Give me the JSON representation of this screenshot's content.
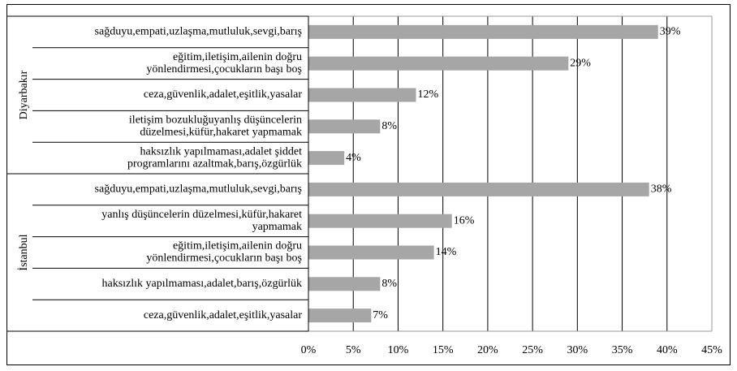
{
  "chart_data": {
    "type": "bar",
    "orientation": "horizontal",
    "color": "#a6a6a6",
    "xlim": [
      0,
      45
    ],
    "xticks": [
      {
        "value": 0,
        "label": "0%"
      },
      {
        "value": 5,
        "label": "5%"
      },
      {
        "value": 10,
        "label": "10%"
      },
      {
        "value": 15,
        "label": "15%"
      },
      {
        "value": 20,
        "label": "20%"
      },
      {
        "value": 25,
        "label": "25%"
      },
      {
        "value": 30,
        "label": "30%"
      },
      {
        "value": 35,
        "label": "35%"
      },
      {
        "value": 40,
        "label": "40%"
      },
      {
        "value": 45,
        "label": "45%"
      }
    ],
    "grid": true,
    "groups": [
      {
        "name": "Diyarbakır",
        "categories": [
          [
            "sağduyu,empati,uzlaşma,mutluluk,sevgi,barış"
          ],
          [
            "eğitim,iletişim,ailenin doğru",
            "yönlendirmesi,çocukların başı boş"
          ],
          [
            "ceza,güvenlik,adalet,eşitlik,yasalar"
          ],
          [
            "iletişim bozukluğuyanlış düşüncelerin",
            "düzelmesi,küfür,hakaret yapmamak"
          ],
          [
            "haksızlık yapılmaması,adalet şiddet",
            "programlarını azaltmak,barış,özgürlük"
          ]
        ],
        "values": [
          39,
          29,
          12,
          8,
          4
        ],
        "value_labels": [
          "39%",
          "29%",
          "12%",
          "8%",
          "4%"
        ]
      },
      {
        "name": "İstanbul",
        "categories": [
          [
            "sağduyu,empati,uzlaşma,mutluluk,sevgi,barış"
          ],
          [
            "yanlış düşüncelerin düzelmesi,küfür,hakaret",
            "yapmamak"
          ],
          [
            "eğitim,iletişim,ailenin doğru",
            "yönlendirmesi,çocukların başı boş"
          ],
          [
            "haksızlık yapılmaması,adalet,barış,özgürlük"
          ],
          [
            "ceza,güvenlik,adalet,eşitlik,yasalar"
          ]
        ],
        "values": [
          38,
          16,
          14,
          8,
          7
        ],
        "value_labels": [
          "38%",
          "16%",
          "14%",
          "8%",
          "7%"
        ]
      }
    ]
  }
}
